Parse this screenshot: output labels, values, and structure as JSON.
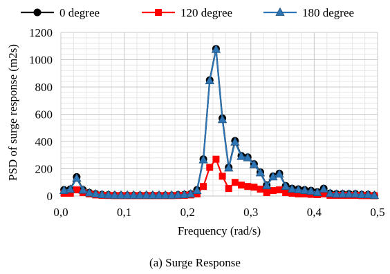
{
  "chart_data": {
    "type": "line",
    "title": "",
    "caption": "(a) Surge Response",
    "xlabel": "Frequency (rad/s)",
    "ylabel": "PSD of surge response (m2s)",
    "xlim": [
      0,
      0.5
    ],
    "ylim": [
      0,
      1200
    ],
    "x_ticks": [
      "0,0",
      "0,1",
      "0,2",
      "0,3",
      "0,4",
      "0,5"
    ],
    "x_tick_values": [
      0,
      0.1,
      0.2,
      0.3,
      0.4,
      0.5
    ],
    "y_ticks": [
      "0",
      "200",
      "400",
      "600",
      "800",
      "1000",
      "1200"
    ],
    "y_tick_values": [
      0,
      200,
      400,
      600,
      800,
      1000,
      1200
    ],
    "grid": true,
    "legend_position": "top",
    "x": [
      0.005,
      0.015,
      0.025,
      0.035,
      0.045,
      0.055,
      0.065,
      0.075,
      0.085,
      0.095,
      0.105,
      0.115,
      0.125,
      0.135,
      0.145,
      0.155,
      0.165,
      0.175,
      0.185,
      0.195,
      0.205,
      0.215,
      0.225,
      0.235,
      0.245,
      0.255,
      0.265,
      0.275,
      0.285,
      0.295,
      0.305,
      0.315,
      0.325,
      0.335,
      0.345,
      0.355,
      0.365,
      0.375,
      0.385,
      0.395,
      0.405,
      0.415,
      0.425,
      0.435,
      0.445,
      0.455,
      0.465,
      0.475,
      0.485,
      0.495
    ],
    "series": [
      {
        "name": "0 degree",
        "color": "#000000",
        "marker": "circle",
        "values": [
          45,
          50,
          140,
          45,
          25,
          15,
          10,
          8,
          6,
          5,
          5,
          5,
          5,
          5,
          5,
          5,
          5,
          5,
          8,
          10,
          15,
          45,
          270,
          850,
          1080,
          570,
          210,
          405,
          295,
          285,
          235,
          175,
          80,
          145,
          165,
          75,
          55,
          50,
          45,
          40,
          30,
          55,
          20,
          15,
          15,
          15,
          15,
          10,
          10,
          5
        ]
      },
      {
        "name": "120 degree",
        "color": "#FF0000",
        "marker": "square",
        "values": [
          20,
          20,
          45,
          25,
          15,
          8,
          5,
          4,
          3,
          3,
          3,
          3,
          3,
          3,
          3,
          3,
          3,
          3,
          4,
          5,
          8,
          15,
          70,
          210,
          270,
          145,
          55,
          100,
          80,
          70,
          65,
          50,
          25,
          40,
          45,
          25,
          20,
          15,
          15,
          12,
          10,
          15,
          5,
          5,
          5,
          5,
          5,
          3,
          3,
          2
        ]
      },
      {
        "name": "180 degree",
        "color": "#2E75B6",
        "marker": "triangle",
        "values": [
          40,
          48,
          130,
          42,
          22,
          14,
          9,
          7,
          5,
          5,
          5,
          5,
          5,
          5,
          5,
          5,
          5,
          5,
          7,
          9,
          14,
          40,
          265,
          845,
          1075,
          560,
          205,
          395,
          290,
          280,
          230,
          170,
          75,
          140,
          160,
          70,
          50,
          45,
          40,
          35,
          25,
          50,
          18,
          13,
          13,
          13,
          13,
          9,
          9,
          4
        ]
      }
    ]
  }
}
